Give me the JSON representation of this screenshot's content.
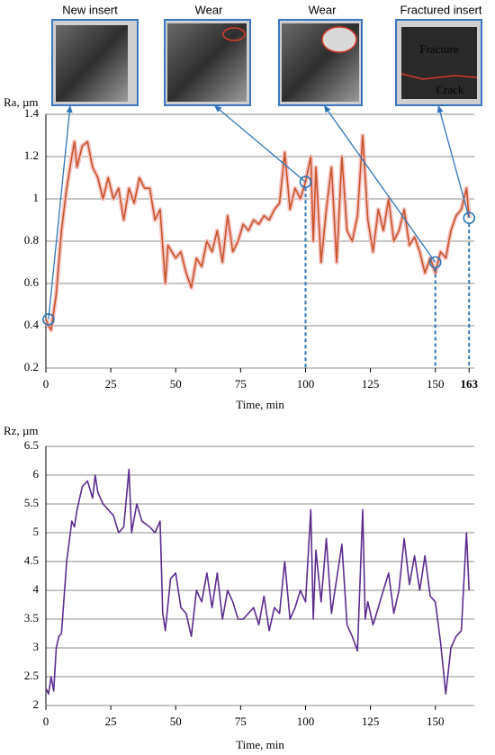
{
  "chart_data": [
    {
      "type": "line",
      "y_label": "Ra, µm",
      "x_label": "Time, min",
      "color": "#c8552a",
      "grid": true,
      "xlim": [
        0,
        165
      ],
      "ylim": [
        0.2,
        1.4
      ],
      "xticks": [
        0,
        25,
        50,
        75,
        100,
        125,
        150,
        163
      ],
      "xtick_colors": [
        "#000000",
        "#000000",
        "#000000",
        "#000000",
        "#000000",
        "#000000",
        "#000000",
        "#2e75b6"
      ],
      "yticks": [
        0.2,
        0.4,
        0.6,
        0.8,
        1,
        1.2,
        1.4
      ],
      "x": [
        0,
        1,
        2,
        4,
        6,
        8,
        10,
        11,
        12,
        14,
        16,
        18,
        20,
        22,
        24,
        26,
        28,
        30,
        32,
        34,
        36,
        38,
        40,
        42,
        44,
        46,
        47,
        50,
        52,
        54,
        56,
        58,
        60,
        62,
        64,
        66,
        68,
        70,
        72,
        74,
        76,
        78,
        80,
        82,
        84,
        86,
        88,
        90,
        92,
        94,
        96,
        98,
        100,
        102,
        103,
        104,
        106,
        108,
        110,
        112,
        114,
        116,
        118,
        120,
        122,
        124,
        126,
        128,
        130,
        132,
        134,
        136,
        138,
        140,
        142,
        144,
        146,
        148,
        150,
        152,
        154,
        156,
        158,
        160,
        162,
        163
      ],
      "values": [
        0.43,
        0.4,
        0.38,
        0.55,
        0.85,
        1.05,
        1.2,
        1.27,
        1.15,
        1.25,
        1.27,
        1.15,
        1.1,
        1.0,
        1.1,
        1.0,
        1.05,
        0.9,
        1.05,
        0.98,
        1.1,
        1.05,
        1.05,
        0.9,
        0.95,
        0.6,
        0.78,
        0.72,
        0.75,
        0.65,
        0.58,
        0.72,
        0.68,
        0.8,
        0.75,
        0.85,
        0.7,
        0.92,
        0.75,
        0.8,
        0.88,
        0.85,
        0.9,
        0.88,
        0.92,
        0.9,
        0.95,
        0.98,
        1.22,
        0.95,
        1.05,
        1.0,
        1.08,
        1.2,
        0.8,
        1.15,
        0.7,
        0.95,
        1.15,
        0.7,
        1.2,
        0.85,
        0.8,
        0.92,
        1.3,
        0.9,
        0.75,
        0.95,
        0.85,
        1.0,
        0.8,
        0.85,
        0.95,
        0.78,
        0.82,
        0.75,
        0.65,
        0.72,
        0.65,
        0.75,
        0.72,
        0.85,
        0.92,
        0.95,
        1.05,
        0.91
      ],
      "annotation_color": "#2e75b6",
      "annotations": [
        {
          "label": "New insert",
          "x": 1,
          "y": 0.43,
          "dashed": false
        },
        {
          "label": "Wear",
          "x": 100,
          "y": 1.08,
          "dashed": true
        },
        {
          "label": "Wear",
          "x": 150,
          "y": 0.7,
          "dashed": true
        },
        {
          "label": "Fractured insert",
          "x": 163,
          "y": 0.91,
          "dashed": true,
          "inset_texts": [
            "Fracture",
            "Crack"
          ]
        }
      ]
    },
    {
      "type": "line",
      "y_label": "Rz, µm",
      "x_label": "Time, min",
      "color": "#5b2d8e",
      "grid": true,
      "xlim": [
        0,
        165
      ],
      "ylim": [
        2,
        6.5
      ],
      "xticks": [
        0,
        25,
        50,
        75,
        100,
        125,
        150
      ],
      "yticks": [
        2,
        2.5,
        3,
        3.5,
        4,
        4.5,
        5,
        5.5,
        6,
        6.5
      ],
      "x": [
        0,
        1,
        2,
        3,
        4,
        5,
        6,
        8,
        10,
        11,
        12,
        14,
        16,
        18,
        19,
        20,
        22,
        24,
        26,
        28,
        30,
        32,
        33,
        35,
        37,
        40,
        42,
        44,
        45,
        46,
        48,
        50,
        52,
        54,
        56,
        58,
        60,
        62,
        64,
        66,
        68,
        70,
        72,
        74,
        76,
        78,
        80,
        82,
        84,
        86,
        88,
        90,
        92,
        94,
        96,
        98,
        100,
        102,
        103,
        104,
        106,
        108,
        110,
        112,
        114,
        116,
        118,
        120,
        122,
        123,
        124,
        126,
        128,
        130,
        132,
        134,
        136,
        138,
        140,
        142,
        144,
        146,
        148,
        150,
        152,
        154,
        156,
        158,
        160,
        162,
        163
      ],
      "values": [
        2.3,
        2.2,
        2.5,
        2.25,
        3.0,
        3.2,
        3.25,
        4.5,
        5.2,
        5.1,
        5.4,
        5.8,
        5.9,
        5.6,
        6.0,
        5.7,
        5.5,
        5.4,
        5.3,
        5.0,
        5.1,
        6.1,
        5.0,
        5.5,
        5.2,
        5.1,
        5.0,
        5.2,
        3.6,
        3.3,
        4.2,
        4.3,
        3.7,
        3.6,
        3.2,
        4.0,
        3.8,
        4.3,
        3.7,
        4.3,
        3.5,
        4.0,
        3.8,
        3.5,
        3.5,
        3.6,
        3.7,
        3.4,
        3.9,
        3.3,
        3.7,
        3.6,
        4.5,
        3.5,
        3.7,
        4.0,
        3.8,
        5.4,
        3.5,
        4.7,
        3.8,
        4.9,
        3.6,
        4.2,
        4.8,
        3.4,
        3.2,
        2.95,
        5.4,
        3.5,
        3.8,
        3.4,
        3.7,
        4.0,
        4.3,
        3.6,
        4.0,
        4.9,
        4.1,
        4.6,
        4.0,
        4.6,
        3.9,
        3.8,
        3.1,
        2.2,
        3.0,
        3.2,
        3.3,
        5.0,
        4.0
      ]
    }
  ]
}
